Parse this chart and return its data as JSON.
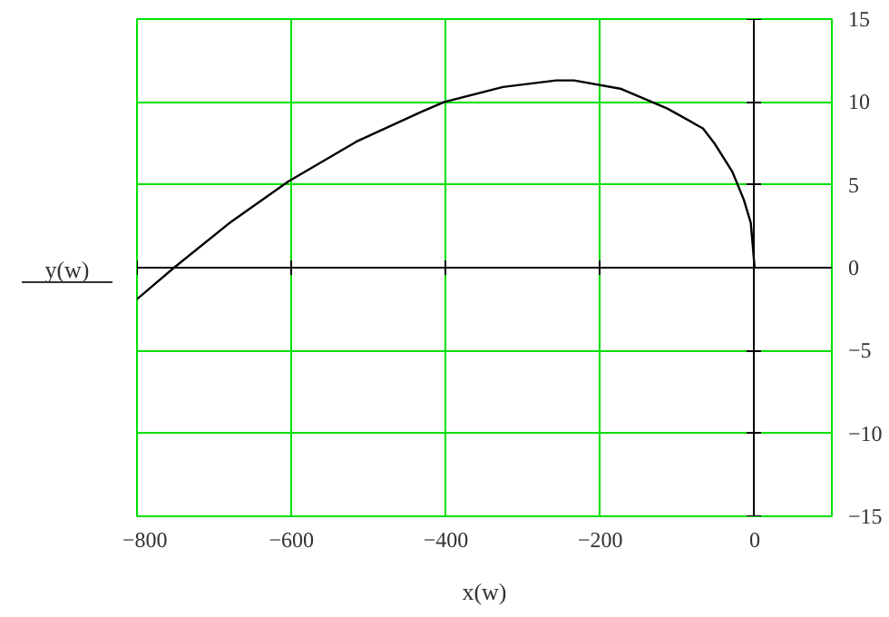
{
  "chart_data": {
    "type": "line",
    "xlabel": "x(w)",
    "ylabel": "y(w)",
    "x": [
      -800,
      -752,
      -680,
      -604,
      -516,
      -432,
      -402,
      -326,
      -257,
      -234,
      -174,
      -113,
      -67,
      -52,
      -29,
      -14,
      -5,
      0
    ],
    "series": [
      {
        "color": "#000000",
        "values": [
          -1.9,
          0,
          2.7,
          5.2,
          7.6,
          9.4,
          10.0,
          10.9,
          11.3,
          11.3,
          10.8,
          9.6,
          8.4,
          7.5,
          5.8,
          4.1,
          2.7,
          0
        ]
      }
    ],
    "xlim": [
      -800,
      100
    ],
    "ylim": [
      -15,
      15
    ],
    "xticks": [
      -800,
      -600,
      -400,
      -200,
      0
    ],
    "yticks": [
      -15,
      -10,
      -5,
      0,
      5,
      10,
      15
    ],
    "grid": true,
    "marker": "none",
    "line_style": "solid"
  }
}
